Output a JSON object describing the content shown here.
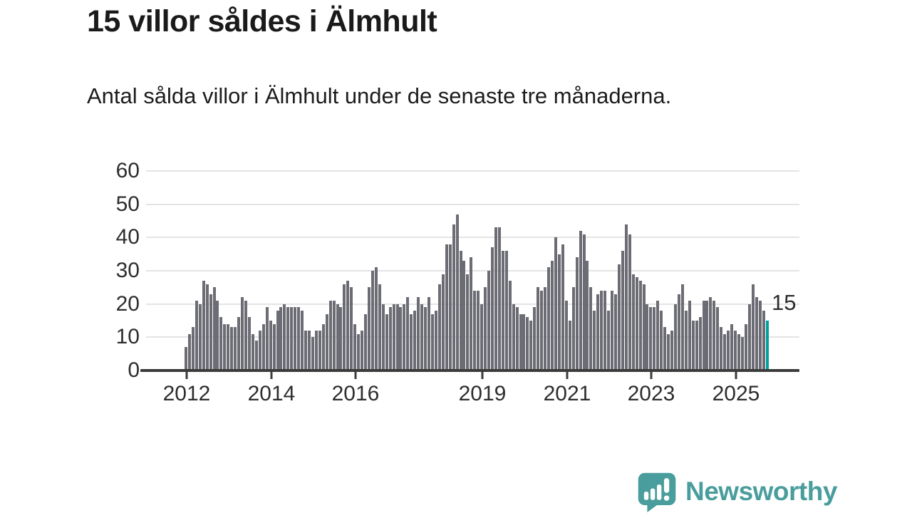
{
  "header": {
    "title": "15 villor såldes i Älmhult",
    "subtitle": "Antal sålda villor i Älmhult under de senaste tre månaderna."
  },
  "annotation": {
    "last_value_label": "15"
  },
  "branding": {
    "name": "Newsworthy",
    "icon": "newsworthy-speech-bubble-chart-icon"
  },
  "colors": {
    "bar": "#6c6c74",
    "highlight": "#00a09d",
    "axis": "#3b3b3b",
    "grid": "#e4e4e4",
    "text": "#2d2d2d",
    "brand": "#4a9d9d"
  },
  "chart_data": {
    "type": "bar",
    "title": "15 villor såldes i Älmhult",
    "subtitle": "Antal sålda villor i Älmhult under de senaste tre månaderna.",
    "x_unit": "month",
    "x_start": "2012-01",
    "x_end": "2025-10",
    "xlabel": "",
    "ylabel": "",
    "ylim": [
      0,
      60
    ],
    "grid": true,
    "legend": "none",
    "y_ticks": [
      0,
      10,
      20,
      30,
      40,
      50,
      60
    ],
    "x_tick_years": [
      2012,
      2014,
      2016,
      2019,
      2021,
      2023,
      2025
    ],
    "x_tick_labels": [
      "2012",
      "2014",
      "2016",
      "2019",
      "2021",
      "2023",
      "2025"
    ],
    "values": [
      7,
      11,
      13,
      21,
      20,
      27,
      26,
      23,
      25,
      21,
      16,
      14,
      14,
      13,
      13,
      16,
      22,
      21,
      16,
      11,
      9,
      12,
      14,
      19,
      15,
      14,
      18,
      19,
      20,
      19,
      19,
      19,
      19,
      18,
      12,
      12,
      10,
      12,
      12,
      14,
      17,
      21,
      21,
      20,
      19,
      26,
      27,
      25,
      14,
      11,
      12,
      17,
      25,
      30,
      31,
      26,
      20,
      17,
      19,
      20,
      20,
      19,
      20,
      22,
      17,
      18,
      22,
      20,
      19,
      22,
      17,
      18,
      26,
      29,
      38,
      38,
      44,
      47,
      36,
      33,
      29,
      34,
      24,
      24,
      20,
      25,
      30,
      37,
      43,
      43,
      36,
      36,
      27,
      20,
      19,
      17,
      17,
      16,
      15,
      19,
      25,
      24,
      25,
      31,
      33,
      40,
      35,
      38,
      21,
      15,
      25,
      34,
      42,
      41,
      33,
      25,
      18,
      23,
      24,
      24,
      18,
      24,
      23,
      32,
      36,
      44,
      41,
      29,
      28,
      27,
      26,
      20,
      19,
      19,
      21,
      18,
      13,
      11,
      12,
      20,
      23,
      26,
      18,
      21,
      15,
      15,
      16,
      21,
      21,
      22,
      21,
      19,
      13,
      11,
      12,
      14,
      12,
      11,
      10,
      14,
      20,
      26,
      22,
      21,
      18,
      15
    ],
    "highlight_last": {
      "value": 15,
      "label": "15"
    }
  }
}
